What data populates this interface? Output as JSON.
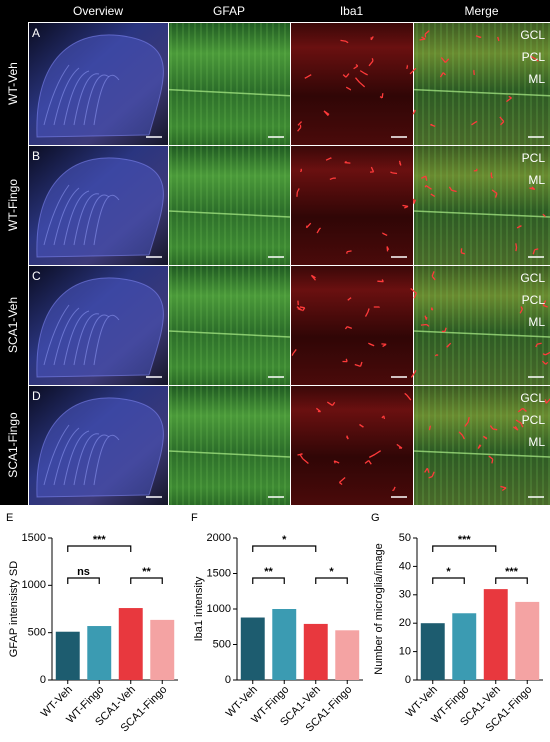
{
  "figure": {
    "columns": [
      "Overview",
      "GFAP",
      "Iba1",
      "Merge"
    ],
    "rows": [
      {
        "panel": "A",
        "label": "WT-Veh",
        "layers": [
          "GCL",
          "PCL",
          "ML"
        ]
      },
      {
        "panel": "B",
        "label": "WT-Fingo",
        "layers": [
          "PCL",
          "ML"
        ]
      },
      {
        "panel": "C",
        "label": "SCA1-Veh",
        "layers": [
          "GCL",
          "PCL",
          "ML"
        ]
      },
      {
        "panel": "D",
        "label": "SCA1-Fingo",
        "layers": [
          "GCL",
          "PCL",
          "ML"
        ]
      }
    ]
  },
  "chart_data": [
    {
      "type": "bar",
      "panel": "E",
      "ylabel": "GFAP intensisty SD",
      "categories": [
        "WT-Veh",
        "WT-Fingo",
        "SCA1-Veh",
        "SCA1-Fingo"
      ],
      "values": [
        510,
        570,
        760,
        635
      ],
      "colors": [
        "#1d5c6f",
        "#3b9bb2",
        "#e8383e",
        "#f4a3a3"
      ],
      "ylim": [
        0,
        1500
      ],
      "yticks": [
        0,
        500,
        1000,
        1500
      ],
      "significance": [
        {
          "between": [
            "WT-Veh",
            "WT-Fingo"
          ],
          "label": "ns"
        },
        {
          "between": [
            "SCA1-Veh",
            "SCA1-Fingo"
          ],
          "label": "**"
        },
        {
          "between": [
            "WT-Veh",
            "SCA1-Veh"
          ],
          "label": "***"
        }
      ]
    },
    {
      "type": "bar",
      "panel": "F",
      "ylabel": "Iba1 intensity",
      "categories": [
        "WT-Veh",
        "WT-Fingo",
        "SCA1-Veh",
        "SCA1-Fingo"
      ],
      "values": [
        880,
        1000,
        790,
        700
      ],
      "colors": [
        "#1d5c6f",
        "#3b9bb2",
        "#e8383e",
        "#f4a3a3"
      ],
      "ylim": [
        0,
        2000
      ],
      "yticks": [
        0,
        500,
        1000,
        1500,
        2000
      ],
      "significance": [
        {
          "between": [
            "WT-Veh",
            "WT-Fingo"
          ],
          "label": "**"
        },
        {
          "between": [
            "SCA1-Veh",
            "SCA1-Fingo"
          ],
          "label": "*"
        },
        {
          "between": [
            "WT-Veh",
            "SCA1-Veh"
          ],
          "label": "*"
        }
      ]
    },
    {
      "type": "bar",
      "panel": "G",
      "ylabel": "Number of microglia/image",
      "categories": [
        "WT-Veh",
        "WT-Fingo",
        "SCA1-Veh",
        "SCA1-Fingo"
      ],
      "values": [
        20,
        23.5,
        32,
        27.5
      ],
      "colors": [
        "#1d5c6f",
        "#3b9bb2",
        "#e8383e",
        "#f4a3a3"
      ],
      "ylim": [
        0,
        50
      ],
      "yticks": [
        0,
        10,
        20,
        30,
        40,
        50
      ],
      "significance": [
        {
          "between": [
            "WT-Veh",
            "WT-Fingo"
          ],
          "label": "*"
        },
        {
          "between": [
            "SCA1-Veh",
            "SCA1-Fingo"
          ],
          "label": "***"
        },
        {
          "between": [
            "WT-Veh",
            "SCA1-Veh"
          ],
          "label": "***"
        }
      ]
    }
  ]
}
